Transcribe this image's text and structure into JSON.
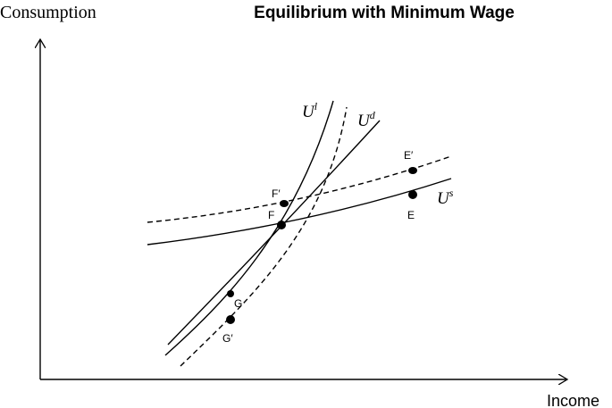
{
  "header": {
    "title": "Equilibrium with Minimum Wage"
  },
  "axes": {
    "y_label": "Consumption",
    "x_label": "Income"
  },
  "curves": [
    {
      "base": "U",
      "sup": "l"
    },
    {
      "base": "U",
      "sup": "d"
    },
    {
      "base": "U",
      "sup": "s"
    }
  ],
  "points": [
    "F′",
    "F",
    "E′",
    "E",
    "G",
    "G′"
  ]
}
